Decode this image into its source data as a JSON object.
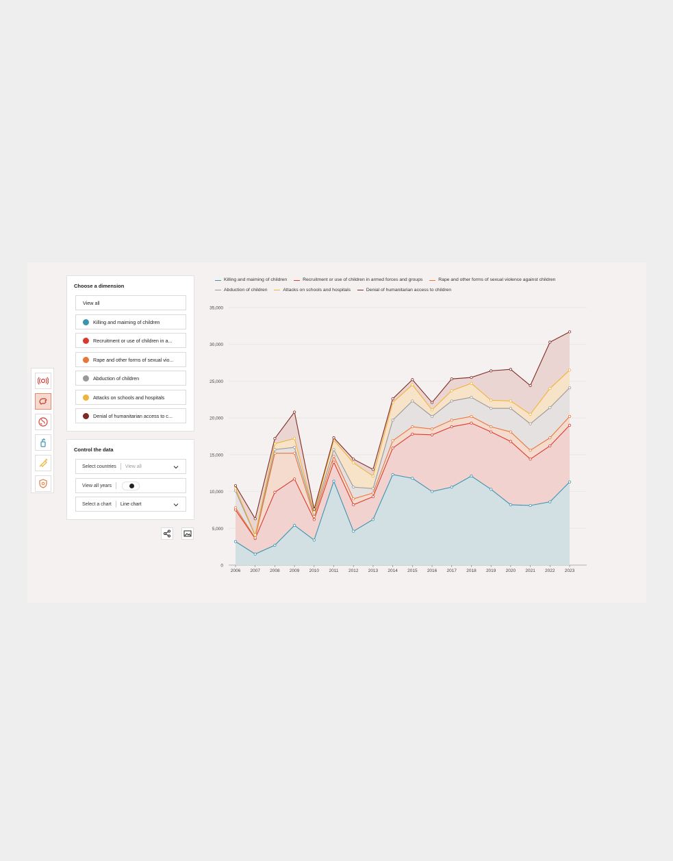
{
  "dimension_panel": {
    "title": "Choose a dimension",
    "view_all": "View all",
    "options": [
      {
        "label": "Killing and maiming of children",
        "color": "#3a94b0"
      },
      {
        "label": "Recruitment or use of children in a...",
        "color": "#d93a2f"
      },
      {
        "label": "Rape and other forms of sexual vio...",
        "color": "#e8763a"
      },
      {
        "label": "Abduction of children",
        "color": "#9a9898"
      },
      {
        "label": "Attacks on schools and hospitals",
        "color": "#f0b43c"
      },
      {
        "label": "Denial of humanitarian access to c...",
        "color": "#7d2a22"
      }
    ]
  },
  "control_panel": {
    "title": "Control the data",
    "countries_label": "Select countries",
    "countries_value": "View all",
    "years_label": "View all years",
    "chart_label": "Select a chart",
    "chart_value": "Line chart"
  },
  "rail_icons": [
    "signal-icon",
    "hand-icon",
    "globe-icon",
    "hand-sanitizer-icon",
    "syringe-icon",
    "shield-icon"
  ],
  "actions": [
    "share-icon",
    "image-icon"
  ],
  "chart_data": {
    "type": "area",
    "stacked": true,
    "x": [
      "2006",
      "2007",
      "2008",
      "2009",
      "2010",
      "2011",
      "2012",
      "2013",
      "2014",
      "2015",
      "2016",
      "2017",
      "2018",
      "2019",
      "2020",
      "2021",
      "2022",
      "2023"
    ],
    "ylim": [
      0,
      35000
    ],
    "yticks": [
      0,
      5000,
      10000,
      15000,
      20000,
      25000,
      30000,
      35000
    ],
    "ytick_labels": [
      "0",
      "5,000",
      "10,000",
      "15,000",
      "20,000",
      "25,000",
      "30,000",
      "35,000"
    ],
    "grid": true,
    "legend_position": "top",
    "series": [
      {
        "name": "Killing and maiming of children",
        "color": "#3a94b0",
        "fill": "#d2e0e3",
        "values": [
          3200,
          1500,
          2700,
          5400,
          3400,
          11400,
          4600,
          6200,
          12300,
          11800,
          10000,
          10600,
          12100,
          10300,
          8200,
          8100,
          8600,
          11300
        ]
      },
      {
        "name": "Recruitment or use of children in armed forces and groups",
        "color": "#d93a2f",
        "fill": "#f2d2cf",
        "values": [
          4300,
          2100,
          7200,
          6300,
          2800,
          2600,
          3600,
          3100,
          3600,
          6000,
          7700,
          8200,
          7200,
          7800,
          8600,
          6300,
          7600,
          7700
        ]
      },
      {
        "name": "Rape and other forms of sexual violence against children",
        "color": "#e8763a",
        "fill": "#f5dbcd",
        "values": [
          300,
          100,
          5300,
          3500,
          400,
          800,
          800,
          500,
          1000,
          1000,
          800,
          900,
          900,
          700,
          1300,
          1200,
          1100,
          1200
        ]
      },
      {
        "name": "Abduction of children",
        "color": "#9a9898",
        "fill": "#e6e1e1",
        "values": [
          2300,
          300,
          500,
          800,
          400,
          900,
          1600,
          600,
          2800,
          3500,
          1700,
          2600,
          2600,
          2500,
          3200,
          3600,
          4100,
          3900
        ]
      },
      {
        "name": "Attacks on schools and hospitals",
        "color": "#f0b43c",
        "fill": "#f6e3c8",
        "values": [
          300,
          100,
          800,
          1200,
          200,
          1300,
          3300,
          1700,
          2400,
          2200,
          900,
          1400,
          1900,
          1100,
          1000,
          1300,
          2600,
          2400
        ]
      },
      {
        "name": "Denial of humanitarian access to children",
        "color": "#7d2a22",
        "fill": "#ead5d3",
        "values": [
          400,
          2200,
          700,
          3600,
          400,
          300,
          500,
          900,
          500,
          700,
          1000,
          1600,
          800,
          4000,
          4300,
          3900,
          6300,
          5200
        ]
      }
    ]
  }
}
